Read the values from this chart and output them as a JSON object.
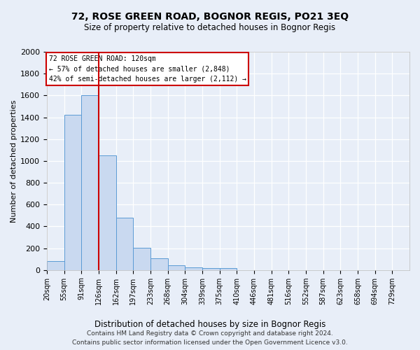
{
  "title": "72, ROSE GREEN ROAD, BOGNOR REGIS, PO21 3EQ",
  "subtitle": "Size of property relative to detached houses in Bognor Regis",
  "xlabel": "Distribution of detached houses by size in Bognor Regis",
  "ylabel": "Number of detached properties",
  "footer_line1": "Contains HM Land Registry data © Crown copyright and database right 2024.",
  "footer_line2": "Contains public sector information licensed under the Open Government Licence v3.0.",
  "annotation_line1": "72 ROSE GREEN ROAD: 120sqm",
  "annotation_line2": "← 57% of detached houses are smaller (2,848)",
  "annotation_line3": "42% of semi-detached houses are larger (2,112) →",
  "bar_color": "#c9d9f0",
  "bar_edge_color": "#5b9bd5",
  "background_color": "#e8eef8",
  "grid_color": "#ffffff",
  "vline_color": "#cc0000",
  "categories": [
    "20sqm",
    "55sqm",
    "91sqm",
    "126sqm",
    "162sqm",
    "197sqm",
    "233sqm",
    "268sqm",
    "304sqm",
    "339sqm",
    "375sqm",
    "410sqm",
    "446sqm",
    "481sqm",
    "516sqm",
    "552sqm",
    "587sqm",
    "623sqm",
    "658sqm",
    "694sqm",
    "729sqm"
  ],
  "bar_heights": [
    85,
    1425,
    1600,
    1050,
    480,
    205,
    105,
    42,
    25,
    20,
    18,
    0,
    0,
    0,
    0,
    0,
    0,
    0,
    0,
    0,
    0
  ],
  "ylim": [
    0,
    2000
  ],
  "yticks": [
    0,
    200,
    400,
    600,
    800,
    1000,
    1200,
    1400,
    1600,
    1800,
    2000
  ],
  "vline_pos": 3,
  "n_bars": 21
}
